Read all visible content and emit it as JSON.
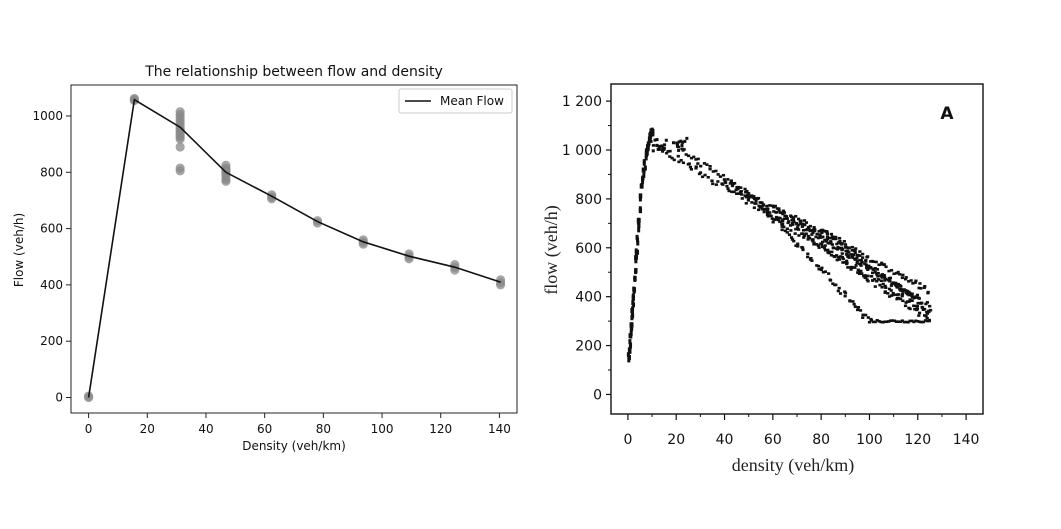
{
  "chart_data": [
    {
      "type": "scatter",
      "title": "The relationship between flow and density",
      "xlabel": "Density (veh/km)",
      "ylabel": "Flow (veh/h)",
      "xlim": [
        -6,
        146
      ],
      "ylim": [
        -55,
        1110
      ],
      "xticks": [
        "0",
        "20",
        "40",
        "60",
        "80",
        "100",
        "120",
        "140"
      ],
      "yticks": [
        "0",
        "200",
        "400",
        "600",
        "800",
        "1000"
      ],
      "grid": false,
      "legend": "upper-right",
      "line_series": {
        "name": "Mean Flow",
        "color": "#111111",
        "x": [
          0,
          15.6,
          31.2,
          46.8,
          62.4,
          78,
          93.6,
          109.2,
          124.8,
          140.4
        ],
        "y": [
          0,
          1058,
          960,
          800,
          715,
          625,
          553,
          502,
          463,
          410
        ]
      },
      "scatter_series": {
        "color": "#888888",
        "x": [
          0,
          0,
          15.6,
          15.6,
          15.6,
          31.2,
          31.2,
          31.2,
          31.2,
          31.2,
          31.2,
          31.2,
          31.2,
          31.2,
          31.2,
          31.2,
          31.2,
          31.2,
          31.2,
          31.2,
          46.8,
          46.8,
          46.8,
          46.8,
          46.8,
          46.8,
          46.8,
          46.8,
          46.8,
          62.4,
          62.4,
          62.4,
          78,
          78,
          93.6,
          93.6,
          93.6,
          109.2,
          109.2,
          109.2,
          124.8,
          124.8,
          124.8,
          140.4,
          140.4,
          140.4
        ],
        "y": [
          0,
          5,
          1058,
          1062,
          1055,
          1015,
          1005,
          995,
          985,
          975,
          965,
          955,
          948,
          940,
          932,
          925,
          918,
          890,
          815,
          805,
          825,
          815,
          805,
          795,
          785,
          775,
          768,
          800,
          810,
          720,
          712,
          706,
          628,
          620,
          560,
          552,
          545,
          510,
          500,
          493,
          472,
          462,
          453,
          418,
          408,
          400
        ]
      }
    },
    {
      "type": "scatter",
      "title": "",
      "panel_label": "A",
      "xlabel": "density (veh/km)",
      "ylabel": "flow (veh/h)",
      "xlim": [
        -7,
        147
      ],
      "ylim": [
        -80,
        1270
      ],
      "xticks": [
        "0",
        "20",
        "40",
        "60",
        "80",
        "100",
        "120",
        "140"
      ],
      "yticks": [
        "0",
        "200",
        "400",
        "600",
        "800",
        "1 000",
        "1 200"
      ],
      "grid": false,
      "color": "#111111",
      "free_flow_x": [
        0.5,
        0.7,
        0.9,
        1.1,
        1.3,
        1.5,
        1.7,
        1.9,
        2.1,
        2.3,
        2.5,
        2.8,
        3.1,
        3.4,
        3.7,
        4.0,
        4.3,
        4.6,
        5.0,
        5.4,
        5.8,
        6.2,
        6.6,
        7.0,
        7.4,
        7.8,
        8.2,
        8.6,
        9.0,
        9.4,
        9.8,
        10.2
      ],
      "free_flow_y": [
        150,
        175,
        210,
        240,
        265,
        290,
        320,
        350,
        380,
        405,
        430,
        470,
        510,
        550,
        590,
        630,
        680,
        720,
        760,
        800,
        840,
        880,
        910,
        940,
        970,
        990,
        1010,
        1030,
        1050,
        1065,
        1075,
        1080
      ],
      "branches": [
        {
          "x0": 10,
          "y0": 1030,
          "x1": 125,
          "y1": 330,
          "count": 130
        },
        {
          "x0": 20,
          "y0": 1010,
          "x1": 125,
          "y1": 360,
          "count": 110
        },
        {
          "x0": 40,
          "y0": 880,
          "x1": 125,
          "y1": 300,
          "count": 90
        },
        {
          "x0": 50,
          "y0": 830,
          "x1": 100,
          "y1": 300,
          "count": 70
        },
        {
          "x0": 60,
          "y0": 770,
          "x1": 120,
          "y1": 390,
          "count": 80
        },
        {
          "x0": 70,
          "y0": 720,
          "x1": 125,
          "y1": 420,
          "count": 70
        },
        {
          "x0": 80,
          "y0": 680,
          "x1": 125,
          "y1": 340,
          "count": 60
        }
      ],
      "floor_y": 300,
      "floor_x_range": [
        100,
        125
      ]
    }
  ]
}
